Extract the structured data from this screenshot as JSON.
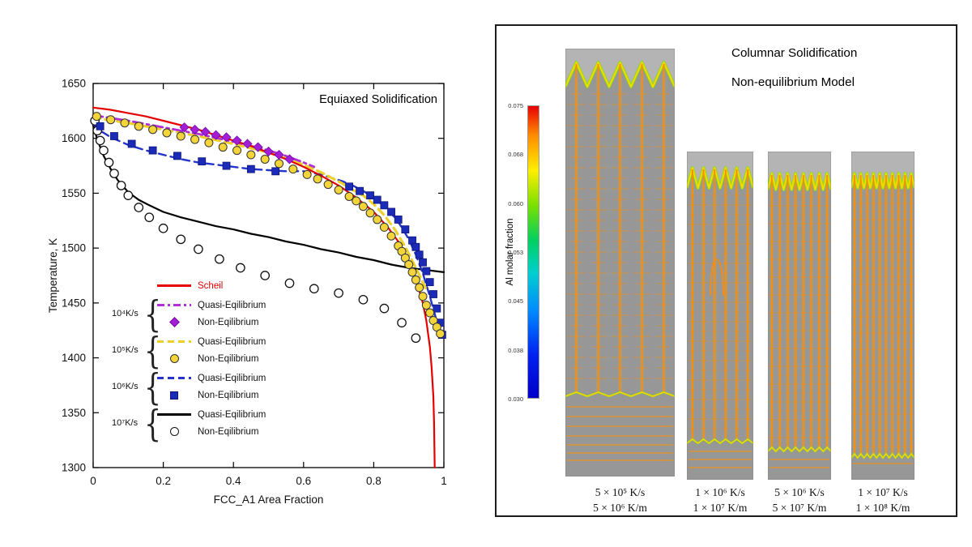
{
  "ui": {
    "brace": "{"
  },
  "chart_data": {
    "type": "line",
    "title": "Equiaxed Solidification",
    "xlabel": "FCC_A1 Area Fraction",
    "ylabel": "Temperature, K",
    "xlim": [
      0,
      1
    ],
    "ylim": [
      1300,
      1650
    ],
    "grid": false,
    "legend_position": "lower-left-inside",
    "xticks": {
      "values": [
        0,
        0.2,
        0.4,
        0.6,
        0.8,
        1
      ],
      "labels": [
        "0",
        "0.2",
        "0.4",
        "0.6",
        "0.8",
        "1"
      ]
    },
    "yticks": {
      "values": [
        1300,
        1350,
        1400,
        1450,
        1500,
        1550,
        1600,
        1650
      ],
      "labels": [
        "1300",
        "1350",
        "1400",
        "1450",
        "1500",
        "1550",
        "1600",
        "1650"
      ]
    },
    "legend": {
      "scheil": "Scheil",
      "groups": [
        {
          "rate": "10⁴K/s",
          "quasi": "Quasi-Eqilibrium",
          "non": "Non-Eqilibrium"
        },
        {
          "rate": "10⁵K/s",
          "quasi": "Quasi-Eqilibrium",
          "non": "Non-Eqilibrium"
        },
        {
          "rate": "10⁶K/s",
          "quasi": "Quasi-Eqilibrium",
          "non": "Non-Eqilibrium"
        },
        {
          "rate": "10⁷K/s",
          "quasi": "Quasi-Eqilibrium",
          "non": "Non-Eqilibrium"
        }
      ]
    },
    "series": [
      {
        "id": "scheil",
        "name": "Scheil",
        "type": "line",
        "color": "#e60000",
        "dash": "none",
        "width": 2.2,
        "x": [
          0,
          0.05,
          0.1,
          0.15,
          0.2,
          0.25,
          0.3,
          0.35,
          0.4,
          0.45,
          0.5,
          0.55,
          0.6,
          0.65,
          0.7,
          0.75,
          0.8,
          0.84,
          0.87,
          0.9,
          0.92,
          0.94,
          0.95,
          0.96,
          0.965,
          0.97,
          0.972,
          0.974
        ],
        "y": [
          1628,
          1626,
          1623,
          1620,
          1616,
          1612,
          1608,
          1603,
          1598,
          1593,
          1587,
          1581,
          1574,
          1566,
          1557,
          1546,
          1533,
          1519,
          1506,
          1488,
          1472,
          1450,
          1434,
          1410,
          1392,
          1365,
          1340,
          1300
        ]
      },
      {
        "id": "quasi-1e4",
        "name": "Quasi-Eqilibrium 10⁴K/s",
        "type": "line",
        "color": "#b02fd6",
        "dash": "dashdot",
        "width": 2.8,
        "x": [
          0,
          0.1,
          0.2,
          0.3,
          0.4,
          0.45,
          0.5,
          0.55,
          0.6,
          0.63
        ],
        "y": [
          1621,
          1616,
          1610,
          1604,
          1597,
          1593,
          1589,
          1584,
          1578,
          1574
        ]
      },
      {
        "id": "non-1e4",
        "name": "Non-Eqilibrium 10⁴K/s",
        "type": "scatter",
        "marker": "diamond",
        "color": "#a21fd6",
        "x": [
          0.26,
          0.29,
          0.32,
          0.35,
          0.38,
          0.41,
          0.44,
          0.47,
          0.5,
          0.53,
          0.56
        ],
        "y": [
          1610,
          1608,
          1606,
          1603,
          1601,
          1598,
          1595,
          1592,
          1588,
          1585,
          1581
        ]
      },
      {
        "id": "quasi-1e5",
        "name": "Quasi-Eqilibrium 10⁵K/s",
        "type": "line",
        "color": "#edd02a",
        "dash": "dash",
        "width": 3.2,
        "x": [
          0,
          0.1,
          0.2,
          0.3,
          0.4,
          0.5,
          0.55,
          0.6,
          0.65,
          0.68,
          0.71,
          0.74,
          0.77,
          0.8,
          0.83,
          0.86,
          0.89,
          0.92,
          0.95
        ],
        "y": [
          1619,
          1614,
          1608,
          1602,
          1595,
          1587,
          1582,
          1576,
          1569,
          1564,
          1559,
          1553,
          1548,
          1540,
          1530,
          1517,
          1501,
          1482,
          1462
        ]
      },
      {
        "id": "non-1e5",
        "name": "Non-Eqilibrium 10⁵K/s",
        "type": "scatter",
        "marker": "circle",
        "color": "#f3d53a",
        "x": [
          0.01,
          0.05,
          0.09,
          0.13,
          0.17,
          0.21,
          0.25,
          0.29,
          0.33,
          0.37,
          0.41,
          0.45,
          0.49,
          0.53,
          0.57,
          0.61,
          0.64,
          0.67,
          0.7,
          0.73,
          0.75,
          0.77,
          0.79,
          0.81,
          0.83,
          0.85,
          0.87,
          0.88,
          0.89,
          0.9,
          0.91,
          0.92,
          0.93,
          0.94,
          0.95,
          0.96,
          0.97,
          0.98,
          0.99
        ],
        "y": [
          1620,
          1617,
          1614,
          1611,
          1608,
          1605,
          1602,
          1599,
          1596,
          1592,
          1589,
          1585,
          1581,
          1577,
          1572,
          1567,
          1563,
          1558,
          1553,
          1547,
          1543,
          1538,
          1532,
          1526,
          1519,
          1511,
          1502,
          1497,
          1491,
          1485,
          1478,
          1471,
          1464,
          1456,
          1448,
          1441,
          1434,
          1428,
          1422
        ]
      },
      {
        "id": "quasi-1e6",
        "name": "Quasi-Eqilibrium 10⁶K/s",
        "type": "line",
        "color": "#2433cc",
        "dash": "dash",
        "width": 2.4,
        "x": [
          0,
          0.02,
          0.05,
          0.1,
          0.15,
          0.2,
          0.25,
          0.3,
          0.35,
          0.4,
          0.45,
          0.5,
          0.55,
          0.6,
          0.65,
          0.68,
          0.71,
          0.74,
          0.77,
          0.8,
          0.83,
          0.86,
          0.88,
          0.9,
          0.92,
          0.94,
          0.96,
          0.98,
          0.99
        ],
        "y": [
          1613,
          1607,
          1601,
          1594,
          1589,
          1585,
          1581,
          1578,
          1576,
          1574,
          1572,
          1571,
          1570,
          1570,
          1567,
          1564,
          1561,
          1557,
          1552,
          1546,
          1538,
          1528,
          1519,
          1508,
          1494,
          1477,
          1456,
          1433,
          1420
        ]
      },
      {
        "id": "non-1e6",
        "name": "Non-Eqilibrium 10⁶K/s",
        "type": "scatter",
        "marker": "square",
        "color": "#1c2ab8",
        "x": [
          0.02,
          0.06,
          0.11,
          0.17,
          0.24,
          0.31,
          0.38,
          0.45,
          0.52,
          0.73,
          0.76,
          0.79,
          0.81,
          0.83,
          0.85,
          0.87,
          0.89,
          0.91,
          0.92,
          0.93,
          0.94,
          0.95,
          0.96,
          0.97,
          0.98,
          0.99,
          0.995
        ],
        "y": [
          1611,
          1602,
          1595,
          1589,
          1584,
          1579,
          1575,
          1572,
          1570,
          1556,
          1552,
          1548,
          1544,
          1539,
          1533,
          1526,
          1517,
          1507,
          1501,
          1494,
          1487,
          1479,
          1469,
          1458,
          1445,
          1432,
          1421
        ]
      },
      {
        "id": "quasi-1e7",
        "name": "Quasi-Eqilibrium 10⁷K/s",
        "type": "line",
        "color": "#000000",
        "dash": "none",
        "width": 2.2,
        "x": [
          0,
          0.01,
          0.02,
          0.03,
          0.05,
          0.07,
          0.1,
          0.13,
          0.16,
          0.2,
          0.25,
          0.3,
          0.35,
          0.4,
          0.45,
          0.5,
          0.55,
          0.6,
          0.65,
          0.7,
          0.75,
          0.8,
          0.85,
          0.9,
          0.95,
          1.0
        ],
        "y": [
          1612,
          1601,
          1592,
          1584,
          1572,
          1562,
          1551,
          1544,
          1539,
          1533,
          1528,
          1524,
          1520,
          1517,
          1513,
          1510,
          1506,
          1503,
          1499,
          1496,
          1492,
          1489,
          1485,
          1482,
          1480,
          1478
        ]
      },
      {
        "id": "non-1e7",
        "name": "Non-Eqilibrium 10⁷K/s",
        "type": "scatter",
        "marker": "open-circle",
        "color": "#ffffff",
        "x": [
          0.005,
          0.012,
          0.02,
          0.03,
          0.045,
          0.06,
          0.08,
          0.1,
          0.13,
          0.16,
          0.2,
          0.25,
          0.3,
          0.36,
          0.42,
          0.49,
          0.56,
          0.63,
          0.7,
          0.77,
          0.83,
          0.88,
          0.92
        ],
        "y": [
          1616,
          1607,
          1598,
          1589,
          1578,
          1568,
          1557,
          1548,
          1537,
          1528,
          1518,
          1508,
          1499,
          1490,
          1482,
          1475,
          1468,
          1463,
          1459,
          1453,
          1445,
          1432,
          1418
        ]
      }
    ]
  },
  "right_panel": {
    "title_line1": "Columnar Solidification",
    "title_line2": "Non-equilibrium Model",
    "colorbar": {
      "label": "Al molar fraction",
      "tick_labels": [
        "0.075",
        "0.068",
        "0.060",
        "0.053",
        "0.045",
        "0.038",
        "0.030"
      ],
      "gradient": [
        "#e80000 0%",
        "#ff8c00 10%",
        "#ffee00 22%",
        "#7ae000 34%",
        "#00d060 46%",
        "#00cfcf 57%",
        "#008cff 70%",
        "#0022f0 85%",
        "#0000c8 100%"
      ]
    },
    "panels": [
      {
        "rate_line1": "5 × 10⁵ K/s",
        "rate_line2": "5 × 10⁶ K/m"
      },
      {
        "rate_line1": "1 × 10⁶ K/s",
        "rate_line2": "1 × 10⁷ K/m"
      },
      {
        "rate_line1": "5 × 10⁶ K/s",
        "rate_line2": "5 × 10⁷ K/m"
      },
      {
        "rate_line1": "1 × 10⁷ K/s",
        "rate_line2": "1 × 10⁸ K/m"
      }
    ]
  }
}
